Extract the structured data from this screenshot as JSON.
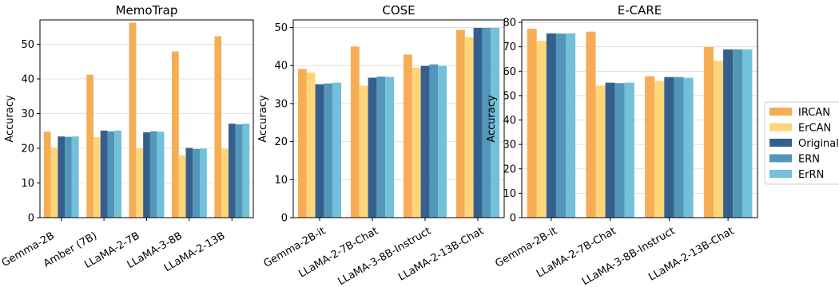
{
  "legend": {
    "placement": "right",
    "entries": [
      {
        "name": "IRCAN",
        "color": "#F6AD55"
      },
      {
        "name": "ErCAN",
        "color": "#FFD57A"
      },
      {
        "name": "Original",
        "color": "#35608E"
      },
      {
        "name": "ERN",
        "color": "#5296B9"
      },
      {
        "name": "ErRN",
        "color": "#72C0DA"
      }
    ]
  },
  "chart_data": [
    {
      "type": "bar",
      "title": "MemoTrap",
      "xlabel": "",
      "ylabel": "Accuracy",
      "ylim": [
        0,
        57
      ],
      "yticks": [
        0,
        10,
        20,
        30,
        40,
        50
      ],
      "grid": true,
      "categories": [
        "Gemma-2B",
        "Amber (7B)",
        "LLaMA-2-7B",
        "LLaMA-3-8B",
        "LLaMA-2-13B"
      ],
      "series": [
        {
          "name": "IRCAN",
          "values": [
            24.8,
            41.2,
            56.2,
            47.9,
            52.3
          ]
        },
        {
          "name": "ErCAN",
          "values": [
            20.2,
            23.2,
            19.9,
            17.9,
            19.8
          ]
        },
        {
          "name": "Original",
          "values": [
            23.4,
            25.1,
            24.6,
            20.1,
            27.1
          ]
        },
        {
          "name": "ERN",
          "values": [
            23.3,
            24.9,
            24.9,
            19.8,
            26.9
          ]
        },
        {
          "name": "ErRN",
          "values": [
            23.4,
            25.1,
            24.8,
            19.9,
            27.1
          ]
        }
      ]
    },
    {
      "type": "bar",
      "title": "COSE",
      "xlabel": "",
      "ylabel": "Accuracy",
      "ylim": [
        0,
        52
      ],
      "yticks": [
        0,
        10,
        20,
        30,
        40,
        50
      ],
      "grid": true,
      "categories": [
        "Gemma-2B-it",
        "LLaMA-2-7B-Chat",
        "LLaMA-3-8B-Instruct",
        "LLaMA-2-13B-Chat"
      ],
      "series": [
        {
          "name": "IRCAN",
          "values": [
            39.1,
            45.0,
            42.9,
            49.4
          ]
        },
        {
          "name": "ErCAN",
          "values": [
            38.2,
            34.7,
            39.5,
            47.5
          ]
        },
        {
          "name": "Original",
          "values": [
            35.1,
            36.8,
            39.9,
            49.9
          ]
        },
        {
          "name": "ERN",
          "values": [
            35.3,
            37.1,
            40.3,
            49.9
          ]
        },
        {
          "name": "ErRN",
          "values": [
            35.5,
            37.0,
            39.9,
            49.9
          ]
        }
      ]
    },
    {
      "type": "bar",
      "title": "E-CARE",
      "xlabel": "",
      "ylabel": "Accuracy",
      "ylim": [
        0,
        81
      ],
      "yticks": [
        0,
        10,
        20,
        30,
        40,
        50,
        60,
        70,
        80
      ],
      "grid": true,
      "categories": [
        "Gemma-2B-it",
        "LLaMA-2-7B-Chat",
        "LLaMA-3-8B-Instruct",
        "LLaMA-2-13B-Chat"
      ],
      "series": [
        {
          "name": "IRCAN",
          "values": [
            77.4,
            76.2,
            57.9,
            69.9
          ]
        },
        {
          "name": "ErCAN",
          "values": [
            72.4,
            54.1,
            56.0,
            64.3
          ]
        },
        {
          "name": "Original",
          "values": [
            75.5,
            55.3,
            57.6,
            68.9
          ]
        },
        {
          "name": "ERN",
          "values": [
            75.4,
            55.1,
            57.6,
            68.9
          ]
        },
        {
          "name": "ErRN",
          "values": [
            75.5,
            55.3,
            57.3,
            68.9
          ]
        }
      ]
    }
  ]
}
